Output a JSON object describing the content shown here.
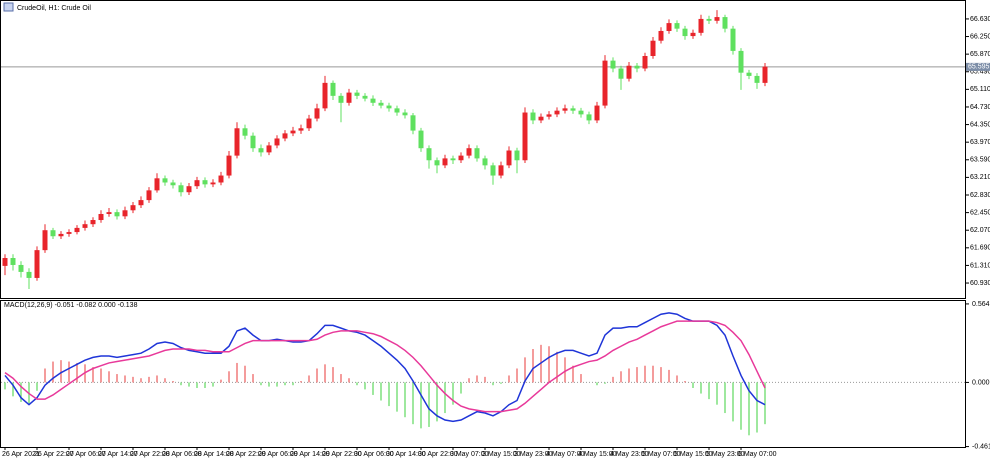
{
  "chart_data": [
    {
      "type": "candlestick",
      "title": "CrudeOil, H1: Crude Oil",
      "up_color": "#e8242b",
      "down_color": "#5fe05f",
      "last_price": 65.595,
      "ylim": [
        60.607,
        67.017
      ],
      "yticks": [
        {
          "value": 60.93,
          "label": "60.930"
        },
        {
          "value": 61.31,
          "label": "61.310"
        },
        {
          "value": 61.69,
          "label": "61.690"
        },
        {
          "value": 62.07,
          "label": "62.070"
        },
        {
          "value": 62.45,
          "label": "62.450"
        },
        {
          "value": 62.83,
          "label": "62.830"
        },
        {
          "value": 63.21,
          "label": "63.210"
        },
        {
          "value": 63.59,
          "label": "63.590"
        },
        {
          "value": 63.97,
          "label": "63.970"
        },
        {
          "value": 64.35,
          "label": "64.350"
        },
        {
          "value": 64.73,
          "label": "64.730"
        },
        {
          "value": 65.11,
          "label": "65.110"
        },
        {
          "value": 65.49,
          "label": "65.490"
        },
        {
          "value": 65.87,
          "label": "65.870"
        },
        {
          "value": 66.25,
          "label": "66.250"
        },
        {
          "value": 66.63,
          "label": "66.630"
        }
      ],
      "open": [
        61.3,
        61.47,
        61.32,
        61.17,
        61.04,
        61.64,
        62.07,
        61.94,
        61.99,
        62.03,
        62.12,
        62.2,
        62.29,
        62.42,
        62.46,
        62.37,
        62.5,
        62.61,
        62.72,
        62.93,
        63.19,
        63.1,
        63.04,
        62.89,
        63.02,
        63.15,
        63.06,
        63.1,
        63.25,
        63.68,
        64.27,
        64.11,
        63.84,
        63.75,
        63.9,
        64.05,
        64.16,
        64.22,
        64.27,
        64.48,
        64.7,
        65.25,
        64.97,
        64.82,
        65.04,
        64.97,
        64.91,
        64.82,
        64.76,
        64.7,
        64.61,
        64.55,
        64.22,
        63.84,
        63.58,
        63.47,
        63.62,
        63.58,
        63.68,
        63.84,
        63.62,
        63.47,
        63.25,
        63.47,
        63.79,
        63.58,
        64.61,
        64.44,
        64.52,
        64.57,
        64.65,
        64.7,
        64.65,
        64.57,
        64.44,
        64.76,
        65.73,
        65.56,
        65.34,
        65.62,
        65.56,
        65.83,
        66.16,
        66.37,
        66.54,
        66.42,
        66.26,
        66.33,
        66.63,
        66.59,
        66.67,
        66.42,
        65.94,
        65.47,
        65.4,
        65.25
      ],
      "high": [
        61.55,
        61.55,
        61.4,
        61.25,
        61.72,
        62.2,
        62.12,
        62.05,
        62.09,
        62.18,
        62.28,
        62.35,
        62.5,
        62.55,
        62.52,
        62.58,
        62.68,
        62.8,
        63.0,
        63.3,
        63.25,
        63.16,
        63.1,
        63.09,
        63.22,
        63.21,
        63.17,
        63.33,
        63.78,
        64.4,
        64.35,
        64.18,
        63.92,
        63.97,
        64.12,
        64.23,
        64.3,
        64.35,
        64.56,
        64.8,
        65.4,
        65.3,
        65.03,
        65.12,
        65.1,
        65.03,
        64.98,
        64.88,
        64.82,
        64.76,
        64.68,
        64.6,
        64.28,
        63.9,
        63.64,
        63.7,
        63.68,
        63.75,
        63.92,
        63.9,
        63.68,
        63.53,
        63.55,
        63.88,
        63.85,
        64.72,
        64.68,
        64.59,
        64.64,
        64.72,
        64.78,
        64.76,
        64.71,
        64.63,
        64.84,
        65.85,
        65.8,
        65.62,
        65.7,
        65.68,
        65.9,
        66.24,
        66.45,
        66.62,
        66.6,
        66.48,
        66.4,
        66.72,
        66.7,
        66.82,
        66.72,
        66.48,
        66.0,
        65.53,
        65.46,
        65.68
      ],
      "low": [
        61.1,
        61.2,
        61.05,
        60.8,
        60.98,
        61.58,
        61.88,
        61.88,
        61.93,
        61.98,
        62.06,
        62.14,
        62.23,
        62.36,
        62.3,
        62.31,
        62.44,
        62.55,
        62.66,
        62.88,
        63.03,
        62.97,
        62.8,
        62.83,
        62.96,
        62.99,
        63.0,
        63.04,
        63.19,
        63.62,
        64.03,
        63.76,
        63.66,
        63.69,
        63.84,
        63.99,
        64.1,
        64.15,
        64.21,
        64.42,
        64.64,
        64.88,
        64.4,
        64.76,
        64.9,
        64.85,
        64.75,
        64.7,
        64.63,
        64.54,
        64.48,
        64.14,
        63.76,
        63.4,
        63.3,
        63.41,
        63.5,
        63.52,
        63.62,
        63.55,
        63.38,
        63.05,
        63.19,
        63.41,
        63.3,
        63.52,
        64.36,
        64.38,
        64.46,
        64.51,
        64.59,
        64.58,
        64.5,
        64.36,
        64.38,
        64.7,
        65.48,
        65.1,
        65.28,
        65.48,
        65.5,
        65.77,
        66.1,
        66.31,
        66.35,
        66.18,
        66.2,
        66.27,
        66.52,
        66.53,
        66.34,
        65.86,
        65.1,
        65.33,
        65.12,
        65.18
      ],
      "close": [
        61.47,
        61.32,
        61.17,
        61.04,
        61.64,
        62.07,
        61.94,
        61.99,
        62.03,
        62.12,
        62.2,
        62.29,
        62.42,
        62.46,
        62.37,
        62.5,
        62.61,
        62.72,
        62.93,
        63.19,
        63.1,
        63.04,
        62.89,
        63.02,
        63.15,
        63.06,
        63.1,
        63.25,
        63.68,
        64.27,
        64.11,
        63.84,
        63.75,
        63.9,
        64.05,
        64.16,
        64.22,
        64.27,
        64.48,
        64.7,
        65.25,
        64.97,
        64.82,
        65.04,
        64.97,
        64.91,
        64.82,
        64.76,
        64.7,
        64.61,
        64.55,
        64.22,
        63.84,
        63.58,
        63.47,
        63.62,
        63.58,
        63.68,
        63.84,
        63.62,
        63.47,
        63.25,
        63.47,
        63.79,
        63.58,
        64.61,
        64.44,
        64.52,
        64.57,
        64.65,
        64.7,
        64.65,
        64.57,
        64.44,
        64.76,
        65.73,
        65.56,
        65.34,
        65.62,
        65.56,
        65.83,
        66.16,
        66.37,
        66.54,
        66.42,
        66.26,
        66.33,
        66.63,
        66.59,
        66.67,
        66.42,
        65.94,
        65.47,
        65.4,
        65.25,
        65.6
      ]
    },
    {
      "type": "macd",
      "title": "MACD(12,26,9) -0.051 -0.082 0.000 -0.138",
      "ylim": [
        -0.464,
        0.585
      ],
      "yticks": [
        0.564,
        {
          "value": 0,
          "label": "0.000"
        },
        -0.461
      ],
      "categories": [
        "26 Apr 2021",
        null,
        null,
        null,
        "26 Apr 22:00",
        null,
        null,
        null,
        "27 Apr 06:00",
        null,
        null,
        null,
        "27 Apr 14:00",
        null,
        null,
        null,
        "27 Apr 22:00",
        null,
        null,
        null,
        "28 Apr 06:00",
        null,
        null,
        null,
        "28 Apr 14:00",
        null,
        null,
        null,
        "28 Apr 22:00",
        null,
        null,
        null,
        "29 Apr 06:00",
        null,
        null,
        null,
        "29 Apr 14:00",
        null,
        null,
        null,
        "29 Apr 22:00",
        null,
        null,
        null,
        "30 Apr 06:00",
        null,
        null,
        null,
        "30 Apr 14:00",
        null,
        null,
        null,
        "30 Apr 22:00",
        null,
        null,
        null,
        "3 May 07:00",
        null,
        null,
        null,
        "3 May 15:00",
        null,
        null,
        null,
        "3 May 23:00",
        null,
        null,
        null,
        "4 May 07:00",
        null,
        null,
        null,
        "4 May 15:00",
        null,
        null,
        null,
        "4 May 23:00",
        null,
        null,
        null,
        "5 May 07:00",
        null,
        null,
        null,
        "5 May 15:00",
        null,
        null,
        null,
        "5 May 23:00",
        null,
        null,
        null,
        "6 May 07:00",
        null,
        null,
        null
      ],
      "histogram": {
        "pos_color": "#f07a7a",
        "neg_color": "#7ee07e",
        "values": [
          -0.05,
          -0.1,
          -0.14,
          -0.15,
          -0.06,
          0.1,
          0.15,
          0.16,
          0.15,
          0.14,
          0.13,
          0.11,
          0.1,
          0.08,
          0.06,
          0.05,
          0.04,
          0.03,
          0.04,
          0.05,
          0.03,
          0.01,
          -0.02,
          -0.03,
          -0.04,
          -0.04,
          -0.03,
          0.02,
          0.08,
          0.14,
          0.12,
          0.06,
          -0.02,
          -0.03,
          -0.03,
          -0.02,
          -0.02,
          0.01,
          0.05,
          0.1,
          0.13,
          0.11,
          0.06,
          0.03,
          -0.02,
          -0.05,
          -0.09,
          -0.13,
          -0.17,
          -0.21,
          -0.25,
          -0.3,
          -0.33,
          -0.32,
          -0.28,
          -0.22,
          -0.16,
          -0.08,
          0.03,
          0.05,
          0.04,
          -0.02,
          -0.01,
          0.05,
          0.1,
          0.18,
          0.24,
          0.27,
          0.26,
          0.22,
          0.18,
          0.12,
          0.06,
          0.0,
          -0.02,
          -0.01,
          0.04,
          0.08,
          0.1,
          0.11,
          0.12,
          0.12,
          0.11,
          0.09,
          0.05,
          0.01,
          -0.04,
          -0.08,
          -0.12,
          -0.16,
          -0.22,
          -0.28,
          -0.34,
          -0.38,
          -0.36,
          -0.3
        ]
      },
      "series": [
        {
          "color": "#1f35d8",
          "values": [
            0.05,
            -0.02,
            -0.11,
            -0.16,
            -0.11,
            -0.02,
            0.03,
            0.07,
            0.1,
            0.13,
            0.16,
            0.18,
            0.19,
            0.19,
            0.18,
            0.19,
            0.2,
            0.21,
            0.24,
            0.28,
            0.29,
            0.28,
            0.25,
            0.23,
            0.22,
            0.21,
            0.21,
            0.21,
            0.26,
            0.37,
            0.39,
            0.34,
            0.3,
            0.3,
            0.31,
            0.3,
            0.29,
            0.29,
            0.3,
            0.35,
            0.41,
            0.41,
            0.39,
            0.37,
            0.36,
            0.34,
            0.3,
            0.26,
            0.21,
            0.16,
            0.1,
            0.01,
            -0.09,
            -0.19,
            -0.24,
            -0.27,
            -0.28,
            -0.27,
            -0.24,
            -0.21,
            -0.22,
            -0.24,
            -0.21,
            -0.16,
            -0.13,
            0.01,
            0.1,
            0.14,
            0.18,
            0.21,
            0.23,
            0.23,
            0.21,
            0.19,
            0.21,
            0.34,
            0.39,
            0.39,
            0.4,
            0.4,
            0.43,
            0.46,
            0.49,
            0.5,
            0.49,
            0.46,
            0.44,
            0.44,
            0.44,
            0.41,
            0.34,
            0.19,
            0.05,
            -0.06,
            -0.13,
            -0.16
          ]
        },
        {
          "color": "#e8399a",
          "values": [
            0.07,
            0.03,
            -0.03,
            -0.08,
            -0.12,
            -0.12,
            -0.09,
            -0.05,
            -0.01,
            0.03,
            0.07,
            0.1,
            0.12,
            0.14,
            0.15,
            0.16,
            0.17,
            0.18,
            0.19,
            0.21,
            0.23,
            0.24,
            0.24,
            0.24,
            0.23,
            0.23,
            0.22,
            0.22,
            0.22,
            0.25,
            0.28,
            0.3,
            0.3,
            0.3,
            0.3,
            0.3,
            0.3,
            0.3,
            0.3,
            0.31,
            0.34,
            0.36,
            0.37,
            0.37,
            0.37,
            0.36,
            0.35,
            0.33,
            0.3,
            0.27,
            0.23,
            0.18,
            0.12,
            0.05,
            -0.02,
            -0.08,
            -0.13,
            -0.17,
            -0.19,
            -0.2,
            -0.21,
            -0.21,
            -0.21,
            -0.2,
            -0.19,
            -0.15,
            -0.1,
            -0.05,
            0.0,
            0.04,
            0.08,
            0.11,
            0.13,
            0.15,
            0.16,
            0.19,
            0.23,
            0.26,
            0.29,
            0.31,
            0.34,
            0.37,
            0.4,
            0.42,
            0.44,
            0.44,
            0.44,
            0.44,
            0.44,
            0.43,
            0.41,
            0.36,
            0.3,
            0.2,
            0.08,
            -0.04
          ]
        }
      ]
    }
  ]
}
